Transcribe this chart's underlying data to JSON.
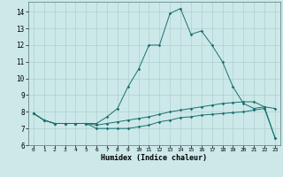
{
  "title": "",
  "xlabel": "Humidex (Indice chaleur)",
  "bg_color": "#cce8e8",
  "line_color": "#1a7070",
  "grid_color": "#b0d0d0",
  "xlim": [
    -0.5,
    23.5
  ],
  "ylim": [
    6,
    14.6
  ],
  "yticks": [
    6,
    7,
    8,
    9,
    10,
    11,
    12,
    13,
    14
  ],
  "xticks": [
    0,
    1,
    2,
    3,
    4,
    5,
    6,
    7,
    8,
    9,
    10,
    11,
    12,
    13,
    14,
    15,
    16,
    17,
    18,
    19,
    20,
    21,
    22,
    23
  ],
  "line1_x": [
    0,
    1,
    2,
    3,
    4,
    5,
    6,
    7,
    8,
    9,
    10,
    11,
    12,
    13,
    14,
    15,
    16,
    17,
    18,
    19,
    20,
    21,
    22,
    23
  ],
  "line1_y": [
    7.9,
    7.5,
    7.3,
    7.3,
    7.3,
    7.3,
    7.3,
    7.7,
    8.2,
    9.5,
    10.55,
    12.0,
    12.0,
    13.9,
    14.2,
    12.65,
    12.85,
    12.0,
    11.0,
    9.5,
    8.5,
    8.2,
    8.3,
    8.2
  ],
  "line2_x": [
    0,
    1,
    2,
    3,
    4,
    5,
    6,
    7,
    8,
    9,
    10,
    11,
    12,
    13,
    14,
    15,
    16,
    17,
    18,
    19,
    20,
    21,
    22,
    23
  ],
  "line2_y": [
    7.9,
    7.5,
    7.3,
    7.3,
    7.3,
    7.3,
    7.0,
    7.0,
    7.0,
    7.0,
    7.1,
    7.2,
    7.4,
    7.5,
    7.65,
    7.7,
    7.8,
    7.85,
    7.9,
    7.95,
    8.0,
    8.1,
    8.2,
    6.45
  ],
  "line3_x": [
    0,
    1,
    2,
    3,
    4,
    5,
    6,
    7,
    8,
    9,
    10,
    11,
    12,
    13,
    14,
    15,
    16,
    17,
    18,
    19,
    20,
    21,
    22,
    23
  ],
  "line3_y": [
    7.9,
    7.5,
    7.3,
    7.3,
    7.3,
    7.3,
    7.2,
    7.3,
    7.4,
    7.5,
    7.6,
    7.7,
    7.85,
    8.0,
    8.1,
    8.2,
    8.3,
    8.4,
    8.5,
    8.55,
    8.6,
    8.6,
    8.3,
    6.45
  ]
}
